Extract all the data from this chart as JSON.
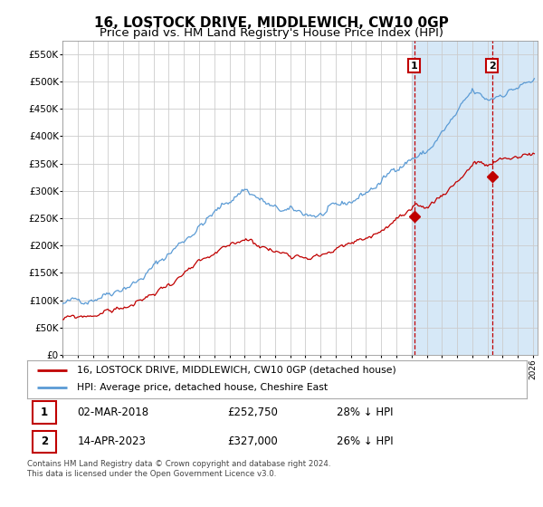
{
  "title": "16, LOSTOCK DRIVE, MIDDLEWICH, CW10 0GP",
  "subtitle": "Price paid vs. HM Land Registry's House Price Index (HPI)",
  "title_fontsize": 11,
  "subtitle_fontsize": 9.5,
  "ytick_vals": [
    0,
    50000,
    100000,
    150000,
    200000,
    250000,
    300000,
    350000,
    400000,
    450000,
    500000,
    550000
  ],
  "ylim": [
    0,
    575000
  ],
  "xlim_start": 1995.0,
  "xlim_end": 2026.3,
  "background_color": "#ffffff",
  "outer_bg_color": "#ffffff",
  "hpi_color": "#5b9bd5",
  "price_color": "#c00000",
  "marker_color": "#c00000",
  "grid_color": "#cccccc",
  "shade_color": "#d6e8f7",
  "shade_start": 2018.0,
  "annotation_box_color": "#c00000",
  "transaction1_date": "02-MAR-2018",
  "transaction1_price": 252750,
  "transaction1_label": "£252,750",
  "transaction1_hpi_diff": "28% ↓ HPI",
  "transaction1_x": 2018.17,
  "transaction1_y": 252750,
  "transaction2_date": "14-APR-2023",
  "transaction2_price": 327000,
  "transaction2_label": "£327,000",
  "transaction2_hpi_diff": "26% ↓ HPI",
  "transaction2_x": 2023.29,
  "transaction2_y": 327000,
  "legend_line1": "16, LOSTOCK DRIVE, MIDDLEWICH, CW10 0GP (detached house)",
  "legend_line2": "HPI: Average price, detached house, Cheshire East",
  "footnote": "Contains HM Land Registry data © Crown copyright and database right 2024.\nThis data is licensed under the Open Government Licence v3.0.",
  "xtick_years": [
    1995,
    1996,
    1997,
    1998,
    1999,
    2000,
    2001,
    2002,
    2003,
    2004,
    2005,
    2006,
    2007,
    2008,
    2009,
    2010,
    2011,
    2012,
    2013,
    2014,
    2015,
    2016,
    2017,
    2018,
    2019,
    2020,
    2021,
    2022,
    2023,
    2024,
    2025,
    2026
  ]
}
